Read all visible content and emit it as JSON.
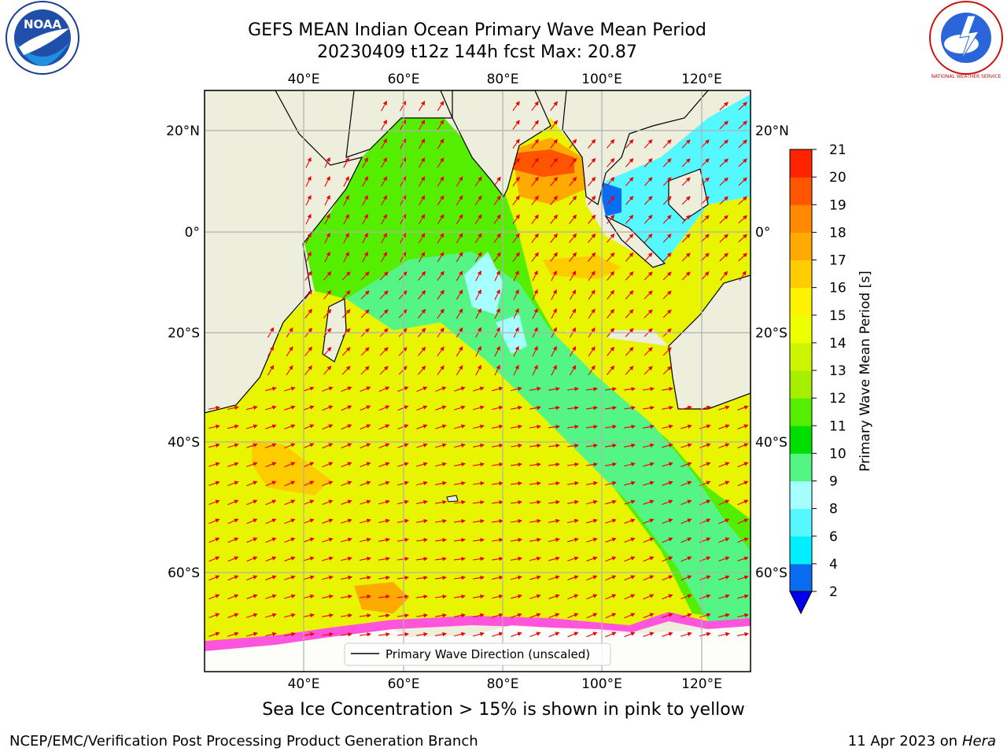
{
  "title_line1": "GEFS MEAN Indian Ocean Primary Wave Mean Period",
  "title_line2": "20230409 t12z 144h fcst   Max: 20.87",
  "caption": "Sea Ice Concentration > 15% is shown in pink to yellow",
  "footer_left": "NCEP/EMC/Verification Post Processing Product Generation Branch",
  "footer_date": "11 Apr 2023 on ",
  "footer_host": "Hera",
  "legend_label": "Primary Wave Direction (unscaled)",
  "logos": {
    "left": "NOAA",
    "right": "NATIONAL WEATHER SERVICE"
  },
  "map": {
    "lon_ticks": [
      "40°E",
      "60°E",
      "80°E",
      "100°E",
      "120°E"
    ],
    "lat_ticks": [
      "20°N",
      "0°",
      "20°S",
      "40°S",
      "60°S"
    ]
  },
  "colorbar": {
    "label": "Primary Wave Mean Period [s]",
    "tick_labels": [
      "2",
      "4",
      "6",
      "8",
      "9",
      "10",
      "11",
      "12",
      "13",
      "14",
      "15",
      "16",
      "17",
      "18",
      "19",
      "20",
      "21"
    ],
    "colors": [
      "#0a6cf0",
      "#00bfff",
      "#00eeff",
      "#55f8ff",
      "#a6ffff",
      "#55f585",
      "#00dd00",
      "#55ee00",
      "#a6ef00",
      "#ccf600",
      "#eeff00",
      "#fff200",
      "#ffcc00",
      "#ffaa00",
      "#ff8800",
      "#ff5500",
      "#ff2200",
      "#ff0000"
    ],
    "under_color": "#0000ee"
  }
}
